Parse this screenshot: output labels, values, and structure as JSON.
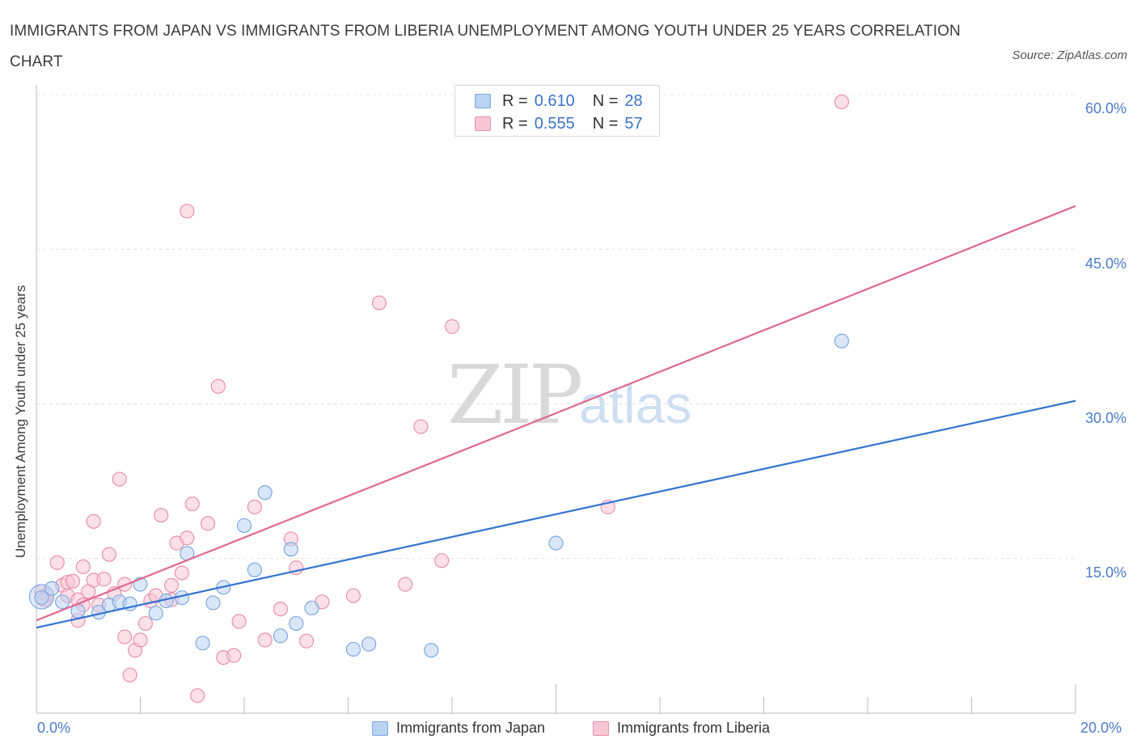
{
  "header": {
    "title": "IMMIGRANTS FROM JAPAN VS IMMIGRANTS FROM LIBERIA UNEMPLOYMENT AMONG YOUTH UNDER 25 YEARS CORRELATION CHART",
    "source": "Source: ZipAtlas.com"
  },
  "watermark": {
    "zip": "ZIP",
    "atlas": "atlas"
  },
  "stats": {
    "japan": {
      "r_label": "R =",
      "r_value": "0.610",
      "n_label": "N =",
      "n_value": "28"
    },
    "liberia": {
      "r_label": "R =",
      "r_value": "0.555",
      "n_label": "N =",
      "n_value": "57"
    }
  },
  "legend": {
    "japan": "Immigrants from Japan",
    "liberia": "Immigrants from Liberia"
  },
  "colors": {
    "japan_line": "#3373d1",
    "japan_fill": "#b9d3f3",
    "japan_stroke": "#7ea9e0",
    "liberia_line": "#e0688f",
    "liberia_fill": "#f9c6d5",
    "liberia_stroke": "#e891ad",
    "tick_text": "#4a7cc9"
  },
  "chart_data": {
    "type": "scatter",
    "title": "IMMIGRANTS FROM JAPAN VS IMMIGRANTS FROM LIBERIA UNEMPLOYMENT AMONG YOUTH UNDER 25 YEARS CORRELATION CHART",
    "xlabel": "",
    "ylabel": "Unemployment Among Youth under 25 years",
    "xlim": [
      0,
      20
    ],
    "ylim": [
      0,
      60
    ],
    "x_tick_labels": {
      "min": "0.0%",
      "max": "20.0%"
    },
    "y_ticks": [
      15,
      30,
      45,
      60
    ],
    "y_tick_labels": [
      "15.0%",
      "30.0%",
      "45.0%",
      "60.0%"
    ],
    "grid": true,
    "legend_position": "bottom-center",
    "series": [
      {
        "name": "Immigrants from Japan",
        "r": 0.61,
        "n": 28,
        "trend": {
          "x": [
            0,
            20
          ],
          "y": [
            8.3,
            30.3
          ]
        },
        "points": [
          [
            0.1,
            11.2
          ],
          [
            0.3,
            12.1
          ],
          [
            0.5,
            10.8
          ],
          [
            0.8,
            9.9
          ],
          [
            1.2,
            9.8
          ],
          [
            1.4,
            10.5
          ],
          [
            1.6,
            10.8
          ],
          [
            1.8,
            10.6
          ],
          [
            2.0,
            12.5
          ],
          [
            2.3,
            9.7
          ],
          [
            2.5,
            10.9
          ],
          [
            2.8,
            11.2
          ],
          [
            2.9,
            15.5
          ],
          [
            3.2,
            6.8
          ],
          [
            3.4,
            10.7
          ],
          [
            3.6,
            12.2
          ],
          [
            4.0,
            18.2
          ],
          [
            4.2,
            13.9
          ],
          [
            4.4,
            21.4
          ],
          [
            4.7,
            7.5
          ],
          [
            4.9,
            15.9
          ],
          [
            5.0,
            8.7
          ],
          [
            5.3,
            10.2
          ],
          [
            6.1,
            6.2
          ],
          [
            6.4,
            6.7
          ],
          [
            7.6,
            6.1
          ],
          [
            10.0,
            16.5
          ],
          [
            15.5,
            36.1
          ]
        ]
      },
      {
        "name": "Immigrants from Liberia",
        "r": 0.555,
        "n": 57,
        "trend": {
          "x": [
            0,
            20
          ],
          "y": [
            9.0,
            49.2
          ]
        },
        "points": [
          [
            0.1,
            11.8
          ],
          [
            0.2,
            11.5
          ],
          [
            0.4,
            14.6
          ],
          [
            0.5,
            12.4
          ],
          [
            0.6,
            11.4
          ],
          [
            0.6,
            12.7
          ],
          [
            0.8,
            11.0
          ],
          [
            0.8,
            9.0
          ],
          [
            0.9,
            10.5
          ],
          [
            0.9,
            14.2
          ],
          [
            1.0,
            11.8
          ],
          [
            1.1,
            18.6
          ],
          [
            1.1,
            12.9
          ],
          [
            1.2,
            10.5
          ],
          [
            1.4,
            15.4
          ],
          [
            1.5,
            11.6
          ],
          [
            1.6,
            22.7
          ],
          [
            1.7,
            12.5
          ],
          [
            1.7,
            7.4
          ],
          [
            1.8,
            3.7
          ],
          [
            1.9,
            6.1
          ],
          [
            2.0,
            7.1
          ],
          [
            2.1,
            8.7
          ],
          [
            2.2,
            10.9
          ],
          [
            2.3,
            11.4
          ],
          [
            2.4,
            19.2
          ],
          [
            2.6,
            12.4
          ],
          [
            2.7,
            16.5
          ],
          [
            2.8,
            13.6
          ],
          [
            2.9,
            17.0
          ],
          [
            2.9,
            48.7
          ],
          [
            3.0,
            20.3
          ],
          [
            3.1,
            1.7
          ],
          [
            3.3,
            18.4
          ],
          [
            3.5,
            31.7
          ],
          [
            3.6,
            5.4
          ],
          [
            3.8,
            5.6
          ],
          [
            3.9,
            8.9
          ],
          [
            4.2,
            20.0
          ],
          [
            4.4,
            7.1
          ],
          [
            4.7,
            10.1
          ],
          [
            4.9,
            16.9
          ],
          [
            5.0,
            14.1
          ],
          [
            5.2,
            7.0
          ],
          [
            5.5,
            10.8
          ],
          [
            6.1,
            11.4
          ],
          [
            6.6,
            39.8
          ],
          [
            7.1,
            12.5
          ],
          [
            7.4,
            27.8
          ],
          [
            7.8,
            14.8
          ],
          [
            8.0,
            37.5
          ],
          [
            11.0,
            20.0
          ],
          [
            15.5,
            59.3
          ],
          [
            0.15,
            11.0
          ],
          [
            1.3,
            13.0
          ],
          [
            2.6,
            11.0
          ],
          [
            0.7,
            12.8
          ]
        ]
      }
    ]
  }
}
